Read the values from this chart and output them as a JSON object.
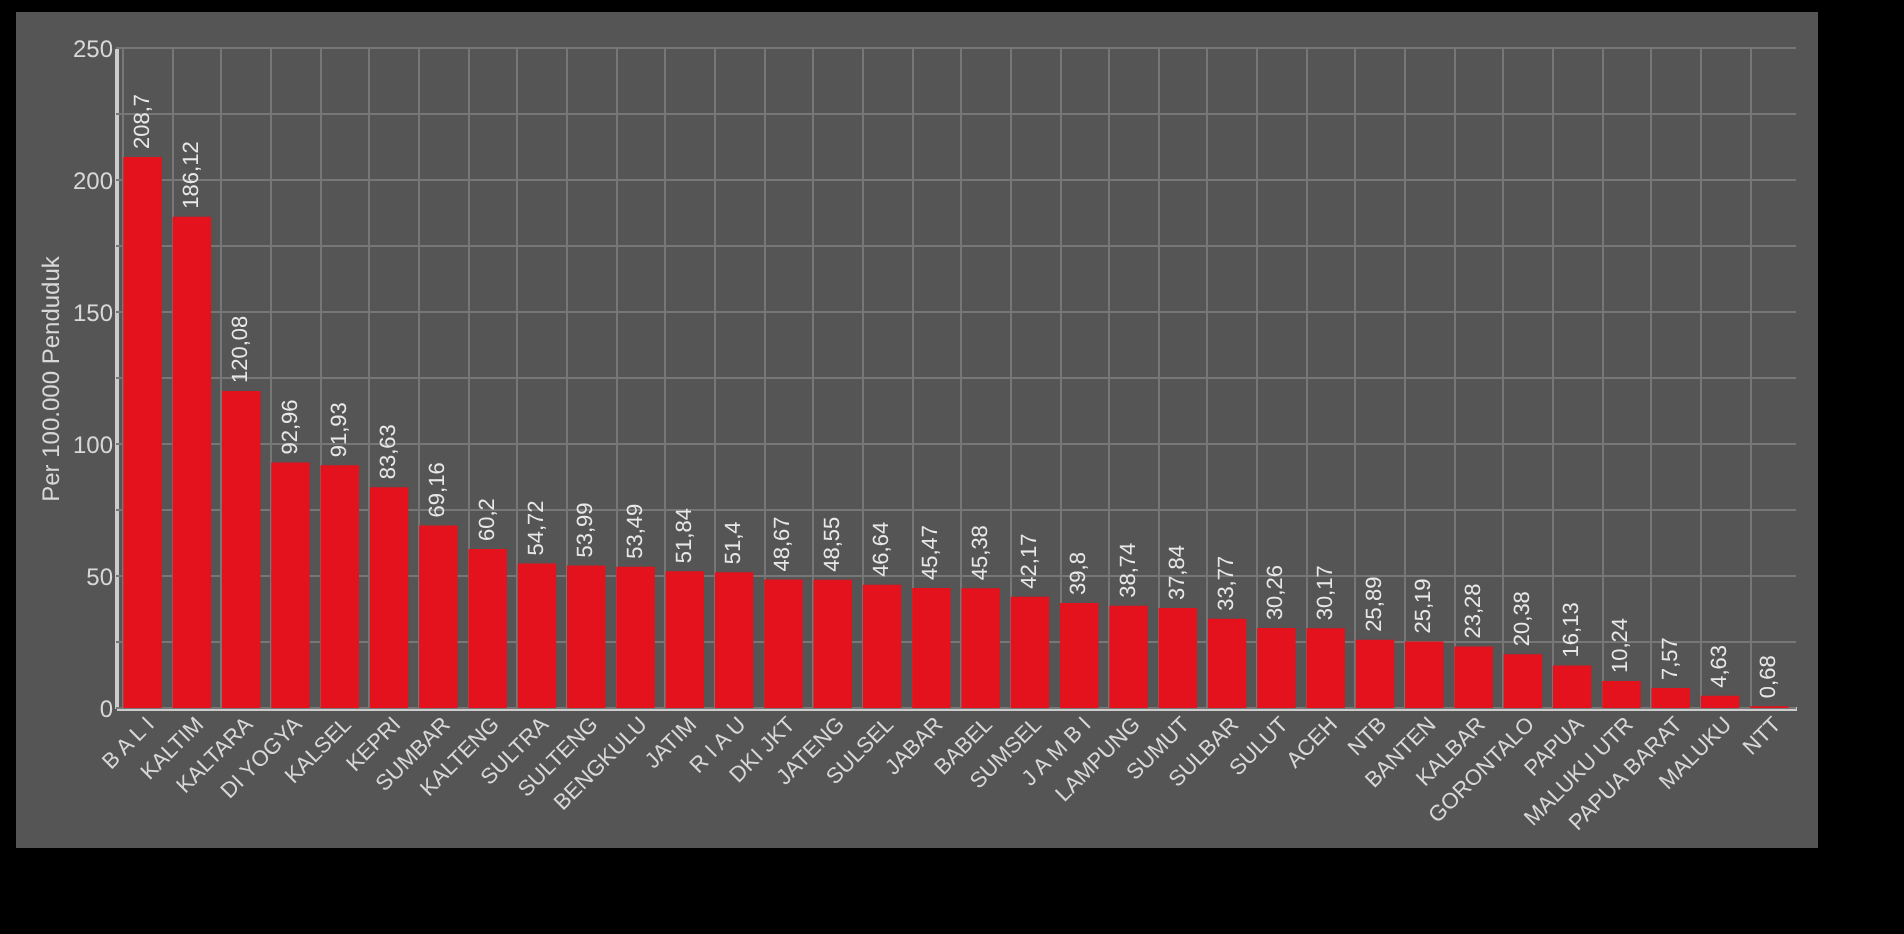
{
  "chart_data": {
    "type": "bar",
    "ylabel": "Per 100.000 Penduduk",
    "categories": [
      "B A L I",
      "KALTIM",
      "KALTARA",
      "DI YOGYA",
      "KALSEL",
      "KEPRI",
      "SUMBAR",
      "KALTENG",
      "SULTRA",
      "SULTENG",
      "BENGKULU",
      "JATIM",
      "R I A U",
      "DKI JKT",
      "JATENG",
      "SULSEL",
      "JABAR",
      "BABEL",
      "SUMSEL",
      "J A M B I",
      "LAMPUNG",
      "SUMUT",
      "SULBAR",
      "SULUT",
      "ACEH",
      "NTB",
      "BANTEN",
      "KALBAR",
      "GORONTALO",
      "PAPUA",
      "MALUKU UTR",
      "PAPUA BARAT",
      "MALUKU",
      "NTT"
    ],
    "values": [
      208.7,
      186.12,
      120.08,
      92.96,
      91.93,
      83.63,
      69.16,
      60.2,
      54.72,
      53.99,
      53.49,
      51.84,
      51.4,
      48.67,
      48.55,
      46.64,
      45.47,
      45.38,
      42.17,
      39.8,
      38.74,
      37.84,
      33.77,
      30.26,
      30.17,
      25.89,
      25.19,
      23.28,
      20.38,
      16.13,
      10.24,
      7.57,
      4.63,
      0.68
    ],
    "value_labels": [
      "208,7",
      "186,12",
      "120,08",
      "92,96",
      "91,93",
      "83,63",
      "69,16",
      "60,2",
      "54,72",
      "53,99",
      "53,49",
      "51,84",
      "51,4",
      "48,67",
      "48,55",
      "46,64",
      "45,47",
      "45,38",
      "42,17",
      "39,8",
      "38,74",
      "37,84",
      "33,77",
      "30,26",
      "30,17",
      "25,89",
      "25,19",
      "23,28",
      "20,38",
      "16,13",
      "10,24",
      "7,57",
      "4,63",
      "0,68"
    ],
    "color": "#e3121c",
    "ylim": [
      0,
      250
    ],
    "yticks": [
      0,
      {
        "value": 25,
        "label": null
      },
      50,
      {
        "value": 75,
        "label": null
      },
      100,
      {
        "value": 125,
        "label": null
      },
      150,
      {
        "value": 175,
        "label": null
      },
      200,
      {
        "value": 225,
        "label": null
      },
      250
    ],
    "grid": true
  }
}
